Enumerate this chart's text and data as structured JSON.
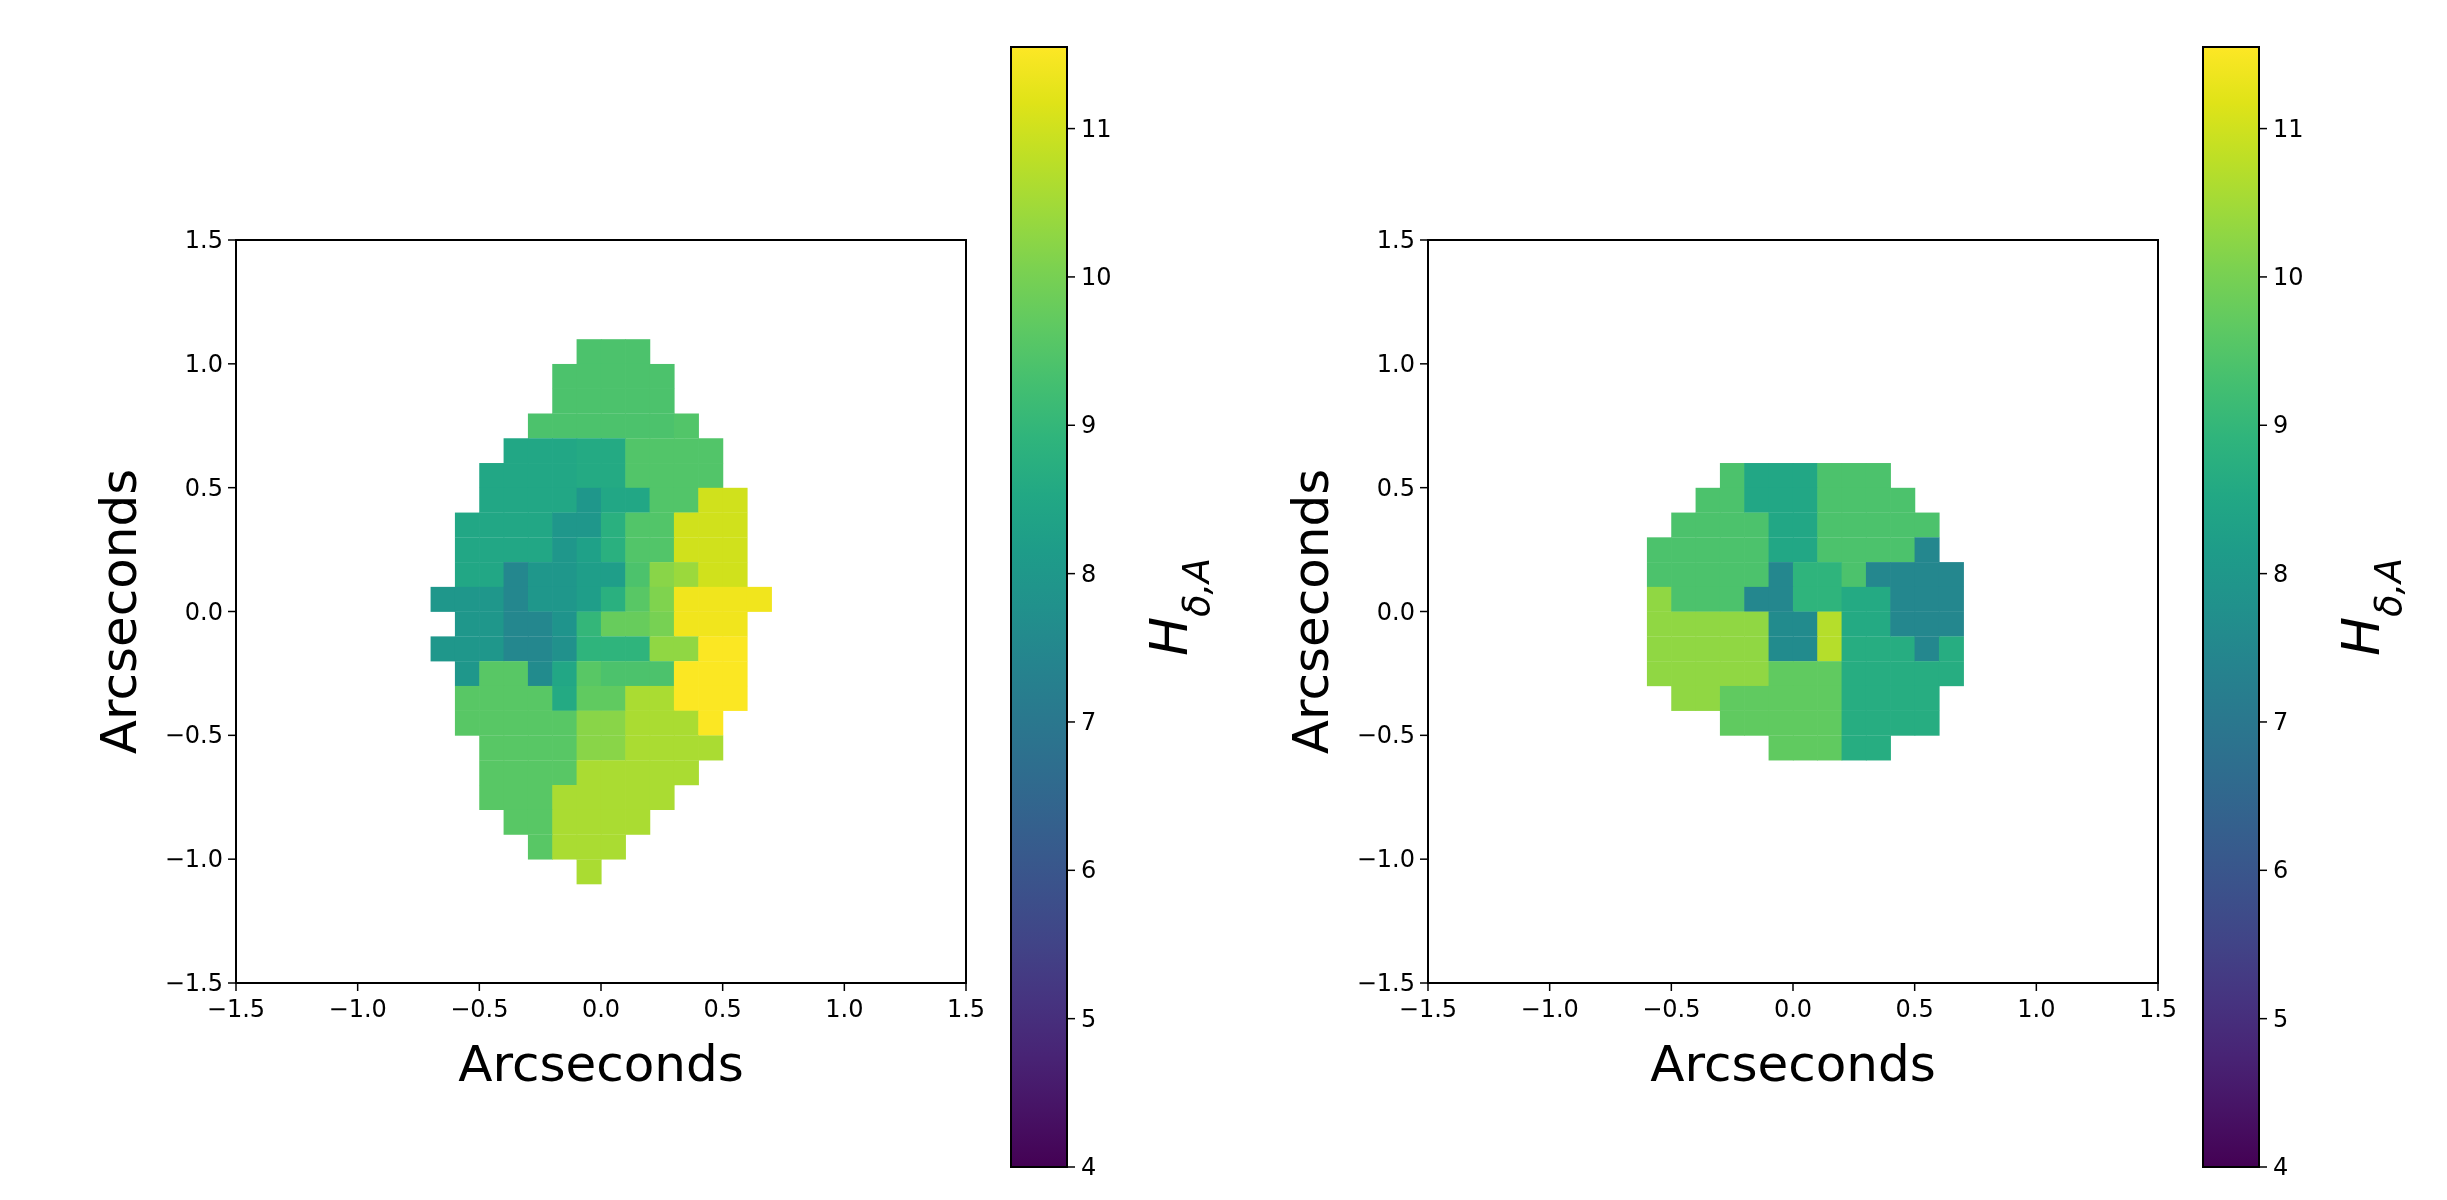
{
  "chart_data": [
    {
      "type": "scatter",
      "marker": "square",
      "xlabel": "Arcseconds",
      "ylabel": "Arcseconds",
      "clabel": "H$_{δ,A}$",
      "xlim": [
        -1.5,
        1.5
      ],
      "ylim": [
        -1.5,
        1.5
      ],
      "xticks": [
        {
          "value": -1.5,
          "label": "−1.5"
        },
        {
          "value": -1.0,
          "label": "−1.0"
        },
        {
          "value": -0.5,
          "label": "−0.5"
        },
        {
          "value": 0,
          "label": "0.0"
        },
        {
          "value": 0.5,
          "label": "0.5"
        },
        {
          "value": 1.0,
          "label": "1.0"
        },
        {
          "value": 1.5,
          "label": "1.5"
        }
      ],
      "yticks": [
        {
          "value": -1.5,
          "label": "−1.5"
        },
        {
          "value": -1.0,
          "label": "−1.0"
        },
        {
          "value": -0.5,
          "label": "−0.5"
        },
        {
          "value": 0,
          "label": "0.0"
        },
        {
          "value": 0.5,
          "label": "0.5"
        },
        {
          "value": 1.0,
          "label": "1.0"
        },
        {
          "value": 1.5,
          "label": "1.5"
        }
      ],
      "clim": [
        4,
        11.55
      ],
      "cticks": [
        4,
        5,
        6,
        7,
        8,
        9,
        10,
        11
      ],
      "x": [
        -0.05,
        0.05,
        0.15,
        -0.15,
        -0.05,
        0.05,
        0.15,
        0.25,
        -0.15,
        -0.05,
        0.05,
        0.15,
        0.25,
        -0.25,
        -0.15,
        -0.05,
        0.05,
        0.15,
        0.25,
        0.35,
        -0.35,
        -0.25,
        -0.15,
        -0.05,
        0.05,
        0.15,
        0.25,
        0.35,
        0.45,
        -0.45,
        -0.35,
        -0.25,
        -0.15,
        -0.05,
        0.05,
        0.15,
        0.25,
        0.35,
        0.45,
        -0.45,
        -0.35,
        -0.25,
        -0.15,
        -0.05,
        0.05,
        0.15,
        0.25,
        0.35,
        0.45,
        0.55,
        -0.55,
        -0.45,
        -0.35,
        -0.25,
        -0.15,
        -0.05,
        0.05,
        0.15,
        0.25,
        0.35,
        0.45,
        0.55,
        -0.55,
        -0.45,
        -0.35,
        -0.25,
        -0.15,
        -0.05,
        0.05,
        0.15,
        0.25,
        0.35,
        0.45,
        0.55,
        -0.55,
        -0.45,
        -0.35,
        -0.25,
        -0.15,
        -0.05,
        0.05,
        0.15,
        0.25,
        0.35,
        0.45,
        0.55,
        -0.65,
        -0.55,
        -0.45,
        -0.35,
        -0.25,
        -0.15,
        -0.05,
        0.05,
        0.15,
        0.25,
        0.35,
        0.45,
        0.55,
        0.65,
        -0.55,
        -0.45,
        -0.35,
        -0.25,
        -0.15,
        -0.05,
        0.05,
        0.15,
        0.25,
        0.35,
        0.45,
        0.55,
        -0.65,
        -0.55,
        -0.45,
        -0.35,
        -0.25,
        -0.15,
        -0.05,
        0.05,
        0.15,
        0.25,
        0.35,
        0.45,
        0.55,
        -0.55,
        -0.45,
        -0.35,
        -0.25,
        -0.15,
        -0.05,
        0.05,
        0.15,
        0.25,
        0.35,
        0.45,
        0.55,
        -0.55,
        -0.45,
        -0.35,
        -0.25,
        -0.15,
        -0.05,
        0.05,
        0.15,
        0.25,
        0.35,
        0.45,
        0.55,
        -0.55,
        -0.45,
        -0.35,
        -0.25,
        -0.15,
        -0.05,
        0.05,
        0.15,
        0.25,
        0.35,
        0.45,
        -0.45,
        -0.35,
        -0.25,
        -0.15,
        -0.05,
        0.05,
        0.15,
        0.25,
        0.35,
        0.45,
        -0.45,
        -0.35,
        -0.25,
        -0.15,
        -0.05,
        0.05,
        0.15,
        0.25,
        0.35,
        -0.45,
        -0.35,
        -0.25,
        -0.15,
        -0.05,
        0.05,
        0.15,
        0.25,
        -0.35,
        -0.25,
        -0.15,
        -0.05,
        0.05,
        0.15,
        -0.25,
        -0.15,
        -0.05,
        0.05,
        -0.05
      ],
      "values": [
        1.05,
        1.05,
        1.05,
        0.95,
        0.95,
        0.95,
        0.95,
        0.95,
        0.85,
        0.85,
        0.85,
        0.85,
        0.85,
        0.75,
        0.75,
        0.75,
        0.75,
        0.75,
        0.75,
        0.75,
        0.65,
        0.65,
        0.65,
        0.65,
        0.65,
        0.65,
        0.65,
        0.65,
        0.65,
        0.55,
        0.55,
        0.55,
        0.55,
        0.55,
        0.55,
        0.55,
        0.55,
        0.55,
        0.55,
        0.45,
        0.45,
        0.45,
        0.45,
        0.45,
        0.45,
        0.45,
        0.45,
        0.45,
        0.45,
        0.45,
        0.35,
        0.35,
        0.35,
        0.35,
        0.35,
        0.35,
        0.35,
        0.35,
        0.35,
        0.35,
        0.35,
        0.35,
        0.25,
        0.25,
        0.25,
        0.25,
        0.25,
        0.25,
        0.25,
        0.25,
        0.25,
        0.25,
        0.25,
        0.25,
        0.15,
        0.15,
        0.15,
        0.15,
        0.15,
        0.15,
        0.15,
        0.15,
        0.15,
        0.15,
        0.15,
        0.15,
        0.05,
        0.05,
        0.05,
        0.05,
        0.05,
        0.05,
        0.05,
        0.05,
        0.05,
        0.05,
        0.05,
        0.05,
        0.05,
        0.05,
        -0.05,
        -0.05,
        -0.05,
        -0.05,
        -0.05,
        -0.05,
        -0.05,
        -0.05,
        -0.05,
        -0.05,
        -0.05,
        -0.05,
        -0.15,
        -0.15,
        -0.15,
        -0.15,
        -0.15,
        -0.15,
        -0.15,
        -0.15,
        -0.15,
        -0.15,
        -0.15,
        -0.15,
        -0.15,
        -0.25,
        -0.25,
        -0.25,
        -0.25,
        -0.25,
        -0.25,
        -0.25,
        -0.25,
        -0.25,
        -0.25,
        -0.25,
        -0.25,
        -0.35,
        -0.35,
        -0.35,
        -0.35,
        -0.35,
        -0.35,
        -0.35,
        -0.35,
        -0.35,
        -0.35,
        -0.35,
        -0.35,
        -0.45,
        -0.45,
        -0.45,
        -0.45,
        -0.45,
        -0.45,
        -0.45,
        -0.45,
        -0.45,
        -0.45,
        -0.45,
        -0.55,
        -0.55,
        -0.55,
        -0.55,
        -0.55,
        -0.55,
        -0.55,
        -0.55,
        -0.55,
        -0.55,
        -0.65,
        -0.65,
        -0.65,
        -0.65,
        -0.65,
        -0.65,
        -0.65,
        -0.65,
        -0.65,
        -0.75,
        -0.75,
        -0.75,
        -0.75,
        -0.75,
        -0.75,
        -0.75,
        -0.75,
        -0.85,
        -0.85,
        -0.85,
        -0.85,
        -0.85,
        -0.85,
        -0.95,
        -0.95,
        -0.95,
        -0.95,
        -1.05
      ],
      "cvalues": [
        9.4,
        9.4,
        9.4,
        9.4,
        9.4,
        9.4,
        9.4,
        9.4,
        9.4,
        9.4,
        9.4,
        9.4,
        9.4,
        9.4,
        9.4,
        9.4,
        9.4,
        9.4,
        9.4,
        9.5,
        8.5,
        8.5,
        8.5,
        8.6,
        8.6,
        9.5,
        9.5,
        9.5,
        9.5,
        8.5,
        8.5,
        8.5,
        8.5,
        8.6,
        8.6,
        9.5,
        9.5,
        9.5,
        9.5,
        8.5,
        8.5,
        8.5,
        8.5,
        8.0,
        8.5,
        8.5,
        9.5,
        9.5,
        11.0,
        11.0,
        8.5,
        8.5,
        8.5,
        8.5,
        8.0,
        8.0,
        8.8,
        9.5,
        9.5,
        11.0,
        11.0,
        11.0,
        8.5,
        8.5,
        8.5,
        8.5,
        8.0,
        8.3,
        8.8,
        9.5,
        9.5,
        11.0,
        11.0,
        11.0,
        8.5,
        8.5,
        7.5,
        8.0,
        8.0,
        8.2,
        8.2,
        9.4,
        10.2,
        10.4,
        11.0,
        11.0,
        8.0,
        8.0,
        8.0,
        7.5,
        8.0,
        8.0,
        8.2,
        8.8,
        9.6,
        10.1,
        11.4,
        11.4,
        11.4,
        11.4,
        8.0,
        8.0,
        7.5,
        7.5,
        7.9,
        9.0,
        9.8,
        9.8,
        10.0,
        11.4,
        11.4,
        11.4,
        8.0,
        8.0,
        8.0,
        7.5,
        7.5,
        7.8,
        8.9,
        8.9,
        8.9,
        10.3,
        10.3,
        11.5,
        11.5,
        8.0,
        9.6,
        9.6,
        7.6,
        8.5,
        9.6,
        9.4,
        9.4,
        9.4,
        11.5,
        11.5,
        11.5,
        9.6,
        9.6,
        9.6,
        9.6,
        8.6,
        9.7,
        9.7,
        10.6,
        10.6,
        11.5,
        11.5,
        11.5,
        9.6,
        9.6,
        9.6,
        9.6,
        9.6,
        10.2,
        10.2,
        10.6,
        10.6,
        10.6,
        11.5,
        9.6,
        9.6,
        9.6,
        9.6,
        10.2,
        10.2,
        10.6,
        10.6,
        10.6,
        10.6,
        9.6,
        9.6,
        9.6,
        9.6,
        10.6,
        10.6,
        10.6,
        10.6,
        10.6,
        9.6,
        9.6,
        9.6,
        10.6,
        10.6,
        10.6,
        10.6,
        10.6,
        9.6,
        9.6,
        10.6,
        10.6,
        10.6,
        10.6,
        9.6,
        10.6,
        10.6,
        10.6,
        10.6
      ]
    },
    {
      "type": "scatter",
      "marker": "square",
      "xlabel": "Arcseconds",
      "ylabel": "Arcseconds",
      "clabel": "H$_{δ,A}$",
      "xlim": [
        -1.5,
        1.5
      ],
      "ylim": [
        -1.5,
        1.5
      ],
      "xticks": [
        {
          "value": -1.5,
          "label": "−1.5"
        },
        {
          "value": -1.0,
          "label": "−1.0"
        },
        {
          "value": -0.5,
          "label": "−0.5"
        },
        {
          "value": 0,
          "label": "0.0"
        },
        {
          "value": 0.5,
          "label": "0.5"
        },
        {
          "value": 1.0,
          "label": "1.0"
        },
        {
          "value": 1.5,
          "label": "1.5"
        }
      ],
      "yticks": [
        {
          "value": -1.5,
          "label": "−1.5"
        },
        {
          "value": -1.0,
          "label": "−1.0"
        },
        {
          "value": -0.5,
          "label": "−0.5"
        },
        {
          "value": 0,
          "label": "0.0"
        },
        {
          "value": 0.5,
          "label": "0.5"
        },
        {
          "value": 1.0,
          "label": "1.0"
        },
        {
          "value": 1.5,
          "label": "1.5"
        }
      ],
      "clim": [
        4,
        11.55
      ],
      "cticks": [
        4,
        5,
        6,
        7,
        8,
        9,
        10,
        11
      ],
      "x": [
        -0.25,
        -0.15,
        -0.05,
        0.05,
        0.15,
        0.25,
        0.35,
        -0.35,
        -0.25,
        -0.15,
        -0.05,
        0.05,
        0.15,
        0.25,
        0.35,
        0.45,
        -0.45,
        -0.35,
        -0.25,
        -0.15,
        -0.05,
        0.05,
        0.15,
        0.25,
        0.35,
        0.45,
        0.55,
        -0.55,
        -0.45,
        -0.35,
        -0.25,
        -0.15,
        -0.05,
        0.05,
        0.15,
        0.25,
        0.35,
        0.45,
        0.55,
        -0.55,
        -0.45,
        -0.35,
        -0.25,
        -0.15,
        -0.05,
        0.05,
        0.15,
        0.25,
        0.35,
        0.45,
        0.55,
        0.65,
        -0.55,
        -0.45,
        -0.35,
        -0.25,
        -0.15,
        -0.05,
        0.05,
        0.15,
        0.25,
        0.35,
        0.45,
        0.55,
        0.65,
        -0.55,
        -0.45,
        -0.35,
        -0.25,
        -0.15,
        -0.05,
        0.05,
        0.15,
        0.25,
        0.35,
        0.45,
        0.55,
        0.65,
        -0.55,
        -0.45,
        -0.35,
        -0.25,
        -0.15,
        -0.05,
        0.05,
        0.15,
        0.25,
        0.35,
        0.45,
        0.55,
        0.65,
        -0.55,
        -0.45,
        -0.35,
        -0.25,
        -0.15,
        -0.05,
        0.05,
        0.15,
        0.25,
        0.35,
        0.45,
        0.55,
        0.65,
        -0.45,
        -0.35,
        -0.25,
        -0.15,
        -0.05,
        0.05,
        0.15,
        0.25,
        0.35,
        0.45,
        0.55,
        -0.25,
        -0.15,
        -0.05,
        0.05,
        0.15,
        0.25,
        0.35,
        0.45,
        0.55,
        -0.05,
        0.05,
        0.15,
        0.25,
        0.35
      ],
      "values": [
        0.55,
        0.55,
        0.55,
        0.55,
        0.55,
        0.55,
        0.55,
        0.45,
        0.45,
        0.45,
        0.45,
        0.45,
        0.45,
        0.45,
        0.45,
        0.45,
        0.35,
        0.35,
        0.35,
        0.35,
        0.35,
        0.35,
        0.35,
        0.35,
        0.35,
        0.35,
        0.35,
        0.25,
        0.25,
        0.25,
        0.25,
        0.25,
        0.25,
        0.25,
        0.25,
        0.25,
        0.25,
        0.25,
        0.25,
        0.15,
        0.15,
        0.15,
        0.15,
        0.15,
        0.15,
        0.15,
        0.15,
        0.15,
        0.15,
        0.15,
        0.15,
        0.15,
        0.05,
        0.05,
        0.05,
        0.05,
        0.05,
        0.05,
        0.05,
        0.05,
        0.05,
        0.05,
        0.05,
        0.05,
        0.05,
        -0.05,
        -0.05,
        -0.05,
        -0.05,
        -0.05,
        -0.05,
        -0.05,
        -0.05,
        -0.05,
        -0.05,
        -0.05,
        -0.05,
        -0.05,
        -0.15,
        -0.15,
        -0.15,
        -0.15,
        -0.15,
        -0.15,
        -0.15,
        -0.15,
        -0.15,
        -0.15,
        -0.15,
        -0.15,
        -0.15,
        -0.25,
        -0.25,
        -0.25,
        -0.25,
        -0.25,
        -0.25,
        -0.25,
        -0.25,
        -0.25,
        -0.25,
        -0.25,
        -0.25,
        -0.25,
        -0.35,
        -0.35,
        -0.35,
        -0.35,
        -0.35,
        -0.35,
        -0.35,
        -0.35,
        -0.35,
        -0.35,
        -0.35,
        -0.45,
        -0.45,
        -0.45,
        -0.45,
        -0.45,
        -0.45,
        -0.45,
        -0.45,
        -0.45,
        -0.55,
        -0.55,
        -0.55,
        -0.55,
        -0.55
      ],
      "cvalues": [
        9.4,
        8.5,
        8.5,
        8.5,
        9.4,
        9.4,
        9.4,
        9.4,
        9.4,
        8.5,
        8.5,
        8.5,
        9.4,
        9.4,
        9.4,
        9.4,
        9.4,
        9.4,
        9.4,
        9.4,
        8.5,
        8.5,
        9.4,
        9.4,
        9.4,
        9.4,
        9.4,
        9.4,
        9.4,
        9.4,
        9.4,
        9.4,
        8.5,
        8.5,
        9.4,
        9.4,
        9.4,
        9.4,
        7.5,
        9.4,
        9.4,
        9.4,
        9.4,
        9.4,
        7.5,
        8.9,
        8.9,
        9.4,
        7.5,
        7.5,
        7.5,
        7.5,
        10.3,
        9.4,
        9.4,
        9.4,
        7.5,
        7.5,
        8.9,
        8.9,
        8.6,
        8.6,
        7.5,
        7.5,
        7.5,
        10.3,
        10.3,
        10.3,
        10.3,
        10.3,
        7.6,
        7.6,
        10.7,
        8.6,
        8.6,
        7.5,
        7.5,
        7.5,
        10.3,
        10.3,
        10.3,
        10.3,
        10.3,
        7.6,
        7.6,
        10.7,
        8.7,
        8.7,
        8.7,
        7.5,
        8.7,
        10.3,
        10.3,
        10.3,
        10.3,
        10.3,
        9.7,
        9.7,
        9.7,
        8.7,
        8.7,
        8.7,
        8.7,
        8.7,
        10.3,
        10.3,
        9.7,
        9.7,
        9.7,
        9.7,
        9.7,
        8.7,
        8.7,
        8.7,
        8.7,
        9.7,
        9.7,
        9.7,
        9.7,
        9.7,
        8.7,
        8.7,
        8.7,
        8.7,
        9.7,
        9.7,
        9.7,
        8.7,
        8.7
      ]
    }
  ]
}
